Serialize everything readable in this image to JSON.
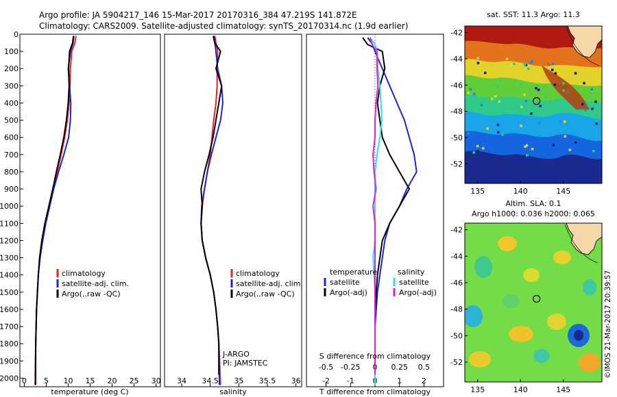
{
  "header": {
    "line1": "Argo profile: JA 5904217_146 15-Mar-2017 20170316_384 47.219S 141.872E",
    "line2": "Climatology: CARS2009. Satellite-adjusted climatology: synTS_20170314.nc (1.9d earlier)"
  },
  "colors": {
    "climatology": "#e8221e",
    "satellite": "#1c23d6",
    "argo": "#000000",
    "salinity_satellite": "#2fe0e6",
    "salinity_argo": "#e020d0"
  },
  "chart_data": [
    {
      "id": "temperature",
      "type": "line",
      "xlabel": "temperature (deg C)",
      "xlim": [
        -1,
        31
      ],
      "xticks": [
        0,
        5,
        10,
        15,
        20,
        25,
        30
      ],
      "ylim": [
        2050,
        0
      ],
      "yticks": [
        0,
        100,
        200,
        300,
        400,
        500,
        600,
        700,
        800,
        900,
        1000,
        1100,
        1200,
        1300,
        1400,
        1500,
        1600,
        1700,
        1800,
        1900,
        2000
      ],
      "legend": [
        "climatology",
        "satellite-adj. clim.",
        "Argo(..raw -QC)"
      ],
      "series": [
        {
          "key": "climatology",
          "x": [
            11.8,
            11.5,
            10.8,
            10.5,
            10.4,
            10.2,
            9.8,
            9.2,
            8.4,
            7.5,
            6.5,
            5.6,
            4.7,
            4.0,
            3.5,
            3.2,
            3.0,
            2.8,
            2.7,
            2.6,
            2.6
          ],
          "y": [
            10,
            50,
            100,
            200,
            300,
            400,
            500,
            600,
            700,
            800,
            900,
            1000,
            1100,
            1200,
            1300,
            1400,
            1500,
            1600,
            1700,
            1800,
            2040
          ]
        },
        {
          "key": "satellite",
          "x": [
            11.3,
            11.1,
            10.5,
            10.0,
            10.3,
            10.6,
            10.5,
            10.1,
            9.0,
            7.8,
            6.7,
            5.8,
            4.9,
            4.2,
            3.6,
            3.2,
            3.0,
            2.8,
            2.7,
            2.6,
            2.5
          ],
          "y": [
            10,
            50,
            100,
            200,
            300,
            400,
            500,
            600,
            700,
            800,
            900,
            1000,
            1100,
            1200,
            1300,
            1400,
            1500,
            1600,
            1700,
            1800,
            2040
          ]
        },
        {
          "key": "argo",
          "x": [
            11.2,
            11.0,
            10.3,
            10.1,
            10.2,
            10.0,
            9.6,
            9.0,
            8.2,
            7.3,
            6.5,
            5.6,
            4.7,
            4.0,
            3.5,
            3.2,
            3.0,
            2.8,
            2.7,
            2.6,
            2.5
          ],
          "y": [
            10,
            50,
            100,
            200,
            300,
            400,
            500,
            600,
            700,
            800,
            900,
            1000,
            1100,
            1200,
            1300,
            1400,
            1500,
            1600,
            1700,
            1800,
            2040
          ]
        }
      ]
    },
    {
      "id": "salinity",
      "type": "line",
      "xlabel": "salinity",
      "xlim": [
        33.7,
        36.1
      ],
      "xticks": [
        34,
        34.5,
        35,
        35.5,
        36
      ],
      "ylim": [
        2050,
        0
      ],
      "legend": [
        "climatology",
        "satellite-adj. clim.",
        "Argo(..raw -QC)"
      ],
      "annotations": [
        "J-ARGO",
        "PI: JAMSTEC"
      ],
      "series": [
        {
          "key": "climatology",
          "x": [
            34.58,
            34.6,
            34.63,
            34.62,
            34.62,
            34.6,
            34.56,
            34.53,
            34.5,
            34.45,
            34.4,
            34.36,
            34.34,
            34.36,
            34.42,
            34.5,
            34.56,
            34.6,
            34.63,
            34.65,
            34.68
          ],
          "y": [
            10,
            50,
            100,
            200,
            300,
            400,
            500,
            600,
            700,
            800,
            900,
            1000,
            1100,
            1200,
            1300,
            1400,
            1500,
            1600,
            1700,
            1800,
            2040
          ]
        },
        {
          "key": "satellite",
          "x": [
            34.55,
            34.58,
            34.6,
            34.63,
            34.7,
            34.72,
            34.68,
            34.6,
            34.52,
            34.45,
            34.4,
            34.35,
            34.34,
            34.36,
            34.42,
            34.5,
            34.56,
            34.6,
            34.63,
            34.65,
            34.66
          ],
          "y": [
            10,
            50,
            100,
            200,
            300,
            400,
            500,
            600,
            700,
            800,
            900,
            1000,
            1100,
            1200,
            1300,
            1400,
            1500,
            1600,
            1700,
            1800,
            2040
          ]
        },
        {
          "key": "argo",
          "x": [
            34.56,
            34.58,
            34.68,
            34.6,
            34.7,
            34.65,
            34.6,
            34.55,
            34.48,
            34.4,
            34.34,
            34.36,
            34.34,
            34.36,
            34.42,
            34.5,
            34.56,
            34.6,
            34.63,
            34.65,
            34.65
          ],
          "y": [
            10,
            50,
            100,
            200,
            300,
            400,
            500,
            600,
            700,
            800,
            900,
            1000,
            1100,
            1200,
            1300,
            1400,
            1500,
            1600,
            1700,
            1800,
            1980
          ]
        }
      ]
    },
    {
      "id": "difference",
      "type": "line",
      "xlabel": "T difference from climatology",
      "xlabel2": "S difference from climatology",
      "xlim": [
        -2.8,
        2.8
      ],
      "xticks": [
        -2,
        -1,
        0,
        1,
        2
      ],
      "s_ticks": [
        -0.5,
        -0.25,
        0,
        0.25,
        0.5
      ],
      "ylim": [
        2050,
        0
      ],
      "legend_titles": [
        "temperature",
        "salinity"
      ],
      "legend": [
        [
          "satellite",
          "Argo(-adj)"
        ],
        [
          "satellite",
          "Argo(-adj)"
        ]
      ],
      "series": [
        {
          "key": "satellite",
          "x": [
            -0.3,
            -0.1,
            0.0,
            0.3,
            0.6,
            0.9,
            1.2,
            1.4,
            1.6,
            1.7,
            1.3,
            1.0,
            0.6,
            0.4,
            0.3,
            0.2,
            0.1,
            0.05,
            0.0,
            0.0,
            0.0
          ],
          "y": [
            20,
            60,
            100,
            200,
            300,
            400,
            500,
            600,
            700,
            800,
            900,
            1000,
            1100,
            1200,
            1300,
            1400,
            1500,
            1600,
            1700,
            1800,
            2040
          ]
        },
        {
          "key": "argo",
          "x": [
            -0.5,
            -0.3,
            0.3,
            0.4,
            0.2,
            0.1,
            0.2,
            0.3,
            0.6,
            1.0,
            1.4,
            1.0,
            0.6,
            0.3,
            0.2,
            0.1,
            0.05,
            0.0,
            0.0,
            0.0,
            0.0
          ],
          "y": [
            20,
            60,
            100,
            200,
            300,
            400,
            500,
            600,
            700,
            800,
            900,
            1000,
            1100,
            1200,
            1300,
            1400,
            1500,
            1600,
            1700,
            1800,
            2040
          ]
        },
        {
          "key": "salinity_satellite",
          "x": [
            -0.05,
            0.0,
            0.02,
            0.03,
            0.05,
            0.06,
            0.07,
            0.05,
            0.02,
            0.0,
            0.0,
            0.0,
            0.0,
            0.0,
            -0.02,
            -0.01,
            0.0,
            0.0,
            0.0,
            0.0,
            0.0
          ],
          "y": [
            20,
            60,
            100,
            200,
            300,
            400,
            500,
            600,
            700,
            800,
            900,
            1000,
            1100,
            1200,
            1300,
            1400,
            1500,
            1600,
            1700,
            1800,
            2040
          ]
        },
        {
          "key": "salinity_argo",
          "x": [
            -0.05,
            -0.03,
            0.02,
            0.02,
            0.03,
            0.01,
            0.0,
            0.0,
            -0.02,
            -0.01,
            0.01,
            -0.02,
            0.0,
            0.0,
            0.0,
            0.0,
            0.0,
            0.0,
            0.0,
            0.0,
            0.0
          ],
          "y": [
            20,
            60,
            100,
            200,
            300,
            400,
            500,
            600,
            700,
            800,
            900,
            1000,
            1100,
            1200,
            1300,
            1400,
            1500,
            1600,
            1700,
            1800,
            1980
          ]
        }
      ]
    },
    {
      "id": "sst_map",
      "type": "heatmap",
      "title": "sat. SST: 11.3 Argo: 11.3",
      "xticks": [
        135,
        140,
        145
      ],
      "yticks": [
        -42,
        -44,
        -46,
        -48,
        -50,
        -52
      ],
      "xlim": [
        133.5,
        149.5
      ],
      "ylim": [
        -53.5,
        -41.5
      ],
      "marker": [
        141.872,
        -47.219
      ]
    },
    {
      "id": "sla_map",
      "type": "heatmap",
      "title": "Altim. SLA: 0.1",
      "subtitle": "Argo h1000: 0.036 h2000: 0.065",
      "xticks": [
        135,
        140,
        145
      ],
      "yticks": [
        -42,
        -44,
        -46,
        -48,
        -50,
        -52
      ],
      "xlim": [
        133.5,
        149.5
      ],
      "ylim": [
        -53.5,
        -41.5
      ],
      "marker": [
        141.872,
        -47.219
      ]
    }
  ],
  "credit": "©IMOS 21-Mar-2017 20:39:57"
}
